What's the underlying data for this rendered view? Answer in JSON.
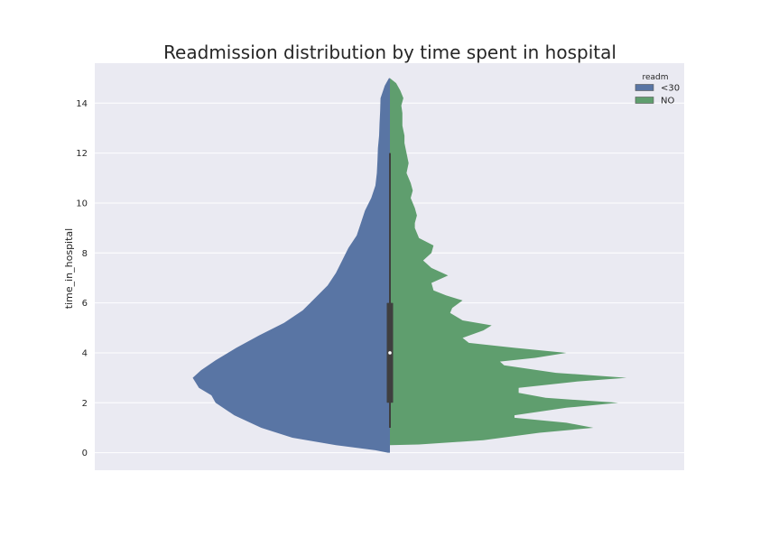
{
  "chart_data": {
    "type": "violin",
    "split": true,
    "title": "Readmission distribution by time spent in hospital",
    "xlabel": "",
    "ylabel": "time_in_hospital",
    "ylim": [
      -0.7,
      15.6
    ],
    "yticks": [
      0,
      2,
      4,
      6,
      8,
      10,
      12,
      14
    ],
    "grid": true,
    "background": "#eaeaf2",
    "legend": {
      "title": "readm",
      "position": "top-right",
      "entries": [
        {
          "label": "<30",
          "color": "#5975a4"
        },
        {
          "label": "NO",
          "color": "#5f9e6e"
        }
      ]
    },
    "series": [
      {
        "name": "<30",
        "side": "left",
        "color": "#5975a4",
        "density_profile": [
          [
            0,
            0.01
          ],
          [
            0.1,
            0.07
          ],
          [
            0.3,
            0.26
          ],
          [
            0.6,
            0.47
          ],
          [
            1.0,
            0.62
          ],
          [
            1.5,
            0.75
          ],
          [
            2.0,
            0.84
          ],
          [
            2.3,
            0.86
          ],
          [
            2.6,
            0.92
          ],
          [
            3.0,
            0.95
          ],
          [
            3.3,
            0.91
          ],
          [
            3.7,
            0.84
          ],
          [
            4.2,
            0.74
          ],
          [
            4.7,
            0.63
          ],
          [
            5.2,
            0.51
          ],
          [
            5.7,
            0.42
          ],
          [
            6.2,
            0.36
          ],
          [
            6.7,
            0.3
          ],
          [
            7.2,
            0.26
          ],
          [
            7.7,
            0.23
          ],
          [
            8.2,
            0.2
          ],
          [
            8.7,
            0.16
          ],
          [
            9.2,
            0.14
          ],
          [
            9.7,
            0.12
          ],
          [
            10.2,
            0.09
          ],
          [
            10.7,
            0.07
          ],
          [
            11.2,
            0.063
          ],
          [
            11.7,
            0.06
          ],
          [
            12.2,
            0.058
          ],
          [
            12.7,
            0.052
          ],
          [
            13.2,
            0.05
          ],
          [
            13.7,
            0.047
          ],
          [
            14.2,
            0.045
          ],
          [
            14.7,
            0.025
          ],
          [
            15.0,
            0.005
          ]
        ]
      },
      {
        "name": "NO",
        "side": "right",
        "color": "#5f9e6e",
        "density_profile": [
          [
            0.3,
            0.0
          ],
          [
            0.33,
            0.14
          ],
          [
            0.5,
            0.45
          ],
          [
            0.8,
            0.72
          ],
          [
            1.0,
            0.98
          ],
          [
            1.2,
            0.85
          ],
          [
            1.4,
            0.6
          ],
          [
            1.5,
            0.6
          ],
          [
            1.8,
            0.85
          ],
          [
            2.0,
            1.1
          ],
          [
            2.2,
            0.75
          ],
          [
            2.4,
            0.62
          ],
          [
            2.6,
            0.62
          ],
          [
            2.85,
            0.9
          ],
          [
            3.0,
            1.14
          ],
          [
            3.2,
            0.8
          ],
          [
            3.5,
            0.55
          ],
          [
            3.65,
            0.53
          ],
          [
            3.8,
            0.7
          ],
          [
            4.0,
            0.85
          ],
          [
            4.2,
            0.6
          ],
          [
            4.4,
            0.38
          ],
          [
            4.6,
            0.35
          ],
          [
            4.9,
            0.45
          ],
          [
            5.1,
            0.49
          ],
          [
            5.3,
            0.35
          ],
          [
            5.6,
            0.29
          ],
          [
            5.8,
            0.3
          ],
          [
            6.1,
            0.35
          ],
          [
            6.3,
            0.27
          ],
          [
            6.5,
            0.21
          ],
          [
            6.8,
            0.2
          ],
          [
            7.1,
            0.28
          ],
          [
            7.4,
            0.2
          ],
          [
            7.7,
            0.16
          ],
          [
            8.0,
            0.2
          ],
          [
            8.3,
            0.21
          ],
          [
            8.6,
            0.14
          ],
          [
            9.0,
            0.12
          ],
          [
            9.2,
            0.12
          ],
          [
            9.5,
            0.13
          ],
          [
            9.8,
            0.12
          ],
          [
            10.2,
            0.1
          ],
          [
            10.5,
            0.11
          ],
          [
            10.8,
            0.1
          ],
          [
            11.2,
            0.08
          ],
          [
            11.6,
            0.09
          ],
          [
            12.0,
            0.08
          ],
          [
            12.4,
            0.07
          ],
          [
            12.7,
            0.07
          ],
          [
            13.1,
            0.06
          ],
          [
            13.6,
            0.06
          ],
          [
            13.9,
            0.055
          ],
          [
            14.2,
            0.065
          ],
          [
            14.5,
            0.05
          ],
          [
            14.8,
            0.03
          ],
          [
            15.0,
            0.0
          ]
        ]
      }
    ],
    "inner_box": {
      "median": 4,
      "q1": 2,
      "q3": 6,
      "whisker_low": 1,
      "whisker_high": 12
    }
  }
}
